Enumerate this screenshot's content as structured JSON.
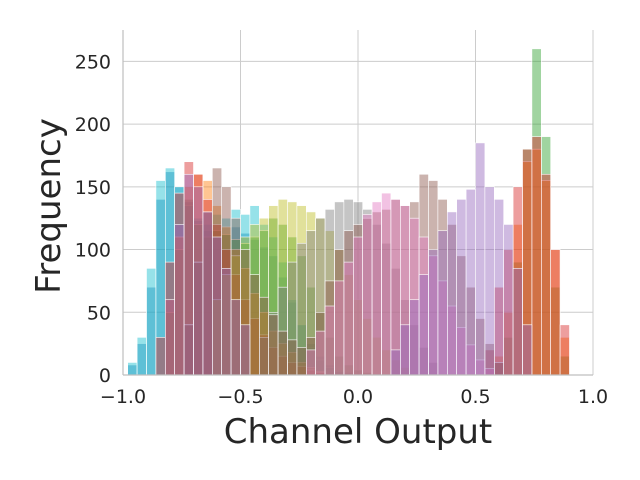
{
  "chart_data": {
    "type": "bar",
    "subtype": "overlaid-histogram",
    "title": "",
    "xlabel": "Channel Output",
    "ylabel": "Frequency",
    "xlim": [
      -1.0,
      1.0
    ],
    "ylim": [
      0,
      275
    ],
    "xticks": [
      -1.0,
      -0.5,
      0.0,
      0.5,
      1.0
    ],
    "xtick_labels": [
      "−1.0",
      "−0.5",
      "0.0",
      "0.5",
      "1.0"
    ],
    "yticks": [
      0,
      50,
      100,
      150,
      200,
      250
    ],
    "ytick_labels": [
      "0",
      "50",
      "100",
      "150",
      "200",
      "250"
    ],
    "grid": true,
    "legend": false,
    "bin_width": 0.04,
    "series": [
      {
        "color": "#1f77b4",
        "x": [
          -0.96,
          -0.92,
          -0.88,
          -0.84,
          -0.8,
          -0.76,
          -0.72,
          -0.68,
          -0.64,
          -0.6,
          -0.56,
          -0.52,
          -0.48,
          -0.44,
          -0.4,
          -0.36,
          -0.32,
          -0.28,
          -0.24,
          -0.2,
          -0.16,
          -0.12,
          -0.08,
          -0.04
        ],
        "values": [
          8,
          25,
          70,
          140,
          162,
          150,
          138,
          123,
          115,
          110,
          112,
          118,
          113,
          108,
          102,
          95,
          78,
          58,
          40,
          25,
          15,
          8,
          4,
          2
        ]
      },
      {
        "color": "#17becf",
        "x": [
          -0.96,
          -0.92,
          -0.88,
          -0.84,
          -0.8,
          -0.76,
          -0.72,
          -0.68,
          -0.64,
          -0.6,
          -0.56,
          -0.52,
          -0.48,
          -0.44,
          -0.4,
          -0.36,
          -0.32,
          -0.28,
          -0.24,
          -0.2,
          -0.16,
          -0.12,
          -0.08
        ],
        "values": [
          10,
          30,
          85,
          155,
          165,
          150,
          135,
          125,
          120,
          128,
          125,
          132,
          128,
          135,
          120,
          110,
          90,
          60,
          40,
          22,
          12,
          6,
          3
        ]
      },
      {
        "color": "#2ca02c",
        "x": [
          -0.8,
          -0.76,
          -0.72,
          -0.68,
          -0.64,
          -0.6,
          -0.56,
          -0.52,
          -0.48,
          -0.44,
          -0.4,
          -0.36,
          -0.32,
          -0.28,
          -0.24,
          -0.2,
          -0.16,
          -0.12,
          -0.08,
          -0.04,
          0.0,
          0.04,
          0.08,
          0.12,
          0.6,
          0.64,
          0.68,
          0.72,
          0.76,
          0.8,
          0.84,
          0.88
        ],
        "values": [
          50,
          100,
          140,
          120,
          110,
          115,
          112,
          108,
          105,
          110,
          115,
          125,
          120,
          110,
          95,
          70,
          50,
          30,
          15,
          8,
          4,
          2,
          1,
          1,
          10,
          30,
          90,
          180,
          260,
          190,
          70,
          15
        ]
      },
      {
        "color": "#ff7f0e",
        "x": [
          -0.8,
          -0.76,
          -0.72,
          -0.68,
          -0.64,
          -0.6,
          -0.56,
          -0.52,
          -0.48,
          -0.44,
          -0.4,
          -0.36,
          -0.32,
          -0.28,
          -0.24,
          -0.2,
          -0.16,
          0.6,
          0.64,
          0.68,
          0.72,
          0.76,
          0.8,
          0.84,
          0.88
        ],
        "values": [
          60,
          110,
          150,
          160,
          155,
          135,
          118,
          100,
          85,
          65,
          50,
          35,
          25,
          18,
          10,
          6,
          3,
          15,
          50,
          120,
          170,
          180,
          155,
          100,
          30
        ]
      },
      {
        "color": "#d62728",
        "x": [
          -0.84,
          -0.8,
          -0.76,
          -0.72,
          -0.68,
          -0.64,
          -0.6,
          -0.56,
          -0.52,
          -0.48,
          -0.44,
          -0.4,
          -0.36,
          -0.32,
          -0.28,
          -0.24,
          -0.2,
          -0.16,
          0.56,
          0.6,
          0.64,
          0.68,
          0.72,
          0.76,
          0.8,
          0.84,
          0.88
        ],
        "values": [
          30,
          90,
          145,
          170,
          160,
          140,
          120,
          100,
          80,
          60,
          45,
          32,
          22,
          15,
          10,
          7,
          4,
          2,
          20,
          70,
          100,
          150,
          180,
          190,
          160,
          100,
          40
        ]
      },
      {
        "color": "#bcbd22",
        "x": [
          -0.6,
          -0.56,
          -0.52,
          -0.48,
          -0.44,
          -0.4,
          -0.36,
          -0.32,
          -0.28,
          -0.24,
          -0.2,
          -0.16,
          -0.12,
          -0.08,
          -0.04,
          0.0,
          0.04,
          0.08,
          0.12,
          0.16,
          0.2
        ],
        "values": [
          60,
          80,
          95,
          110,
          120,
          125,
          135,
          140,
          138,
          135,
          130,
          125,
          115,
          100,
          80,
          60,
          45,
          30,
          20,
          12,
          6
        ]
      },
      {
        "color": "#7f7f7f",
        "x": [
          -0.4,
          -0.36,
          -0.32,
          -0.28,
          -0.24,
          -0.2,
          -0.16,
          -0.12,
          -0.08,
          -0.04,
          0.0,
          0.04,
          0.08,
          0.12,
          0.16,
          0.2,
          0.24,
          0.28,
          0.32
        ],
        "values": [
          30,
          50,
          70,
          90,
          105,
          115,
          125,
          132,
          138,
          140,
          138,
          132,
          120,
          105,
          85,
          60,
          40,
          22,
          10
        ]
      },
      {
        "color": "#8c564b",
        "x": [
          -0.72,
          -0.68,
          -0.64,
          -0.6,
          -0.56,
          -0.52,
          -0.48,
          -0.44,
          -0.4,
          -0.36,
          -0.32,
          -0.28,
          -0.24,
          -0.2,
          -0.16,
          -0.12,
          -0.08,
          -0.04,
          0.0,
          0.04,
          0.08,
          0.12,
          0.16,
          0.2,
          0.24,
          0.28,
          0.32,
          0.36,
          0.4,
          0.44,
          0.48,
          0.52,
          0.56,
          0.6
        ],
        "values": [
          40,
          90,
          130,
          165,
          150,
          125,
          100,
          80,
          62,
          48,
          35,
          28,
          22,
          30,
          50,
          75,
          100,
          115,
          120,
          125,
          130,
          132,
          140,
          135,
          138,
          160,
          155,
          140,
          120,
          95,
          70,
          45,
          25,
          10
        ]
      },
      {
        "color": "#e377c2",
        "x": [
          -0.2,
          -0.16,
          -0.12,
          -0.08,
          -0.04,
          0.0,
          0.04,
          0.08,
          0.12,
          0.16,
          0.2,
          0.24,
          0.28,
          0.32,
          0.36,
          0.4,
          0.44,
          0.48,
          0.52,
          0.56
        ],
        "values": [
          20,
          35,
          55,
          75,
          90,
          110,
          128,
          138,
          145,
          140,
          135,
          125,
          110,
          95,
          75,
          55,
          38,
          24,
          12,
          5
        ]
      },
      {
        "color": "#9467bd",
        "x": [
          -0.8,
          -0.76,
          -0.72,
          -0.68,
          -0.64,
          -0.6,
          -0.56,
          -0.52,
          -0.48,
          0.16,
          0.2,
          0.24,
          0.28,
          0.32,
          0.36,
          0.4,
          0.44,
          0.48,
          0.52,
          0.56,
          0.6,
          0.64,
          0.68,
          0.72
        ],
        "values": [
          60,
          120,
          160,
          150,
          130,
          110,
          85,
          60,
          40,
          20,
          40,
          60,
          80,
          100,
          115,
          130,
          140,
          148,
          185,
          150,
          140,
          120,
          85,
          40
        ]
      }
    ]
  }
}
